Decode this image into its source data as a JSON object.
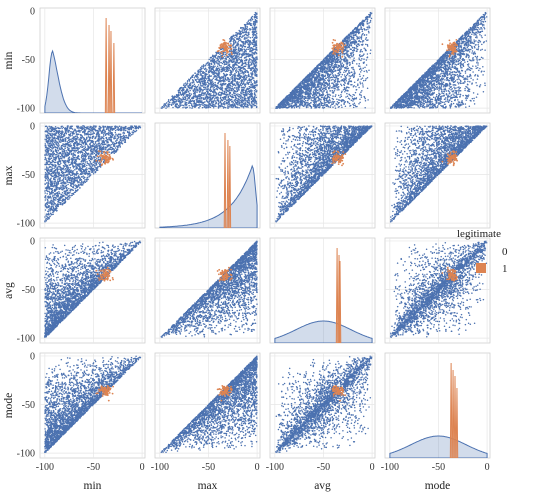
{
  "chart_data": {
    "type": "scatter",
    "subtype": "pairplot",
    "variables": [
      "min",
      "max",
      "avg",
      "mode"
    ],
    "axis_range": [
      -105,
      3
    ],
    "ticks": [
      -100,
      -50,
      0
    ],
    "x_tick_labels": [
      "-100",
      "-50",
      "0"
    ],
    "y_tick_labels": [
      "-100",
      "-50",
      "0"
    ],
    "grid": true,
    "hue": "legitimate",
    "legend": {
      "title": "legitimate",
      "placement": "right",
      "entries": [
        {
          "label": "0",
          "color": "#4c72b0"
        },
        {
          "label": "1",
          "color": "#dd8452"
        }
      ]
    },
    "series": [
      {
        "name": "0",
        "color": "#4c72b0",
        "distribution": "uniform over [-100, 0], with min <= avg <= max and min <= mode <= max"
      },
      {
        "name": "1",
        "color": "#dd8452",
        "cluster_center": {
          "min": -38,
          "max": -33,
          "avg": -35,
          "mode": -36
        },
        "cluster_spread": 4
      }
    ],
    "diagonal": {
      "type": "kde",
      "legitimate_0_peaks": {
        "min": -95,
        "max": -5,
        "avg": -50,
        "mode": -50
      },
      "legitimate_1_spikes": {
        "min": [
          -37,
          -34,
          -32,
          -29
        ],
        "max": [
          -33,
          -30,
          -28
        ],
        "avg": [
          -36,
          -34,
          -33
        ],
        "mode": [
          -37,
          -35,
          -33,
          -31
        ]
      }
    }
  }
}
